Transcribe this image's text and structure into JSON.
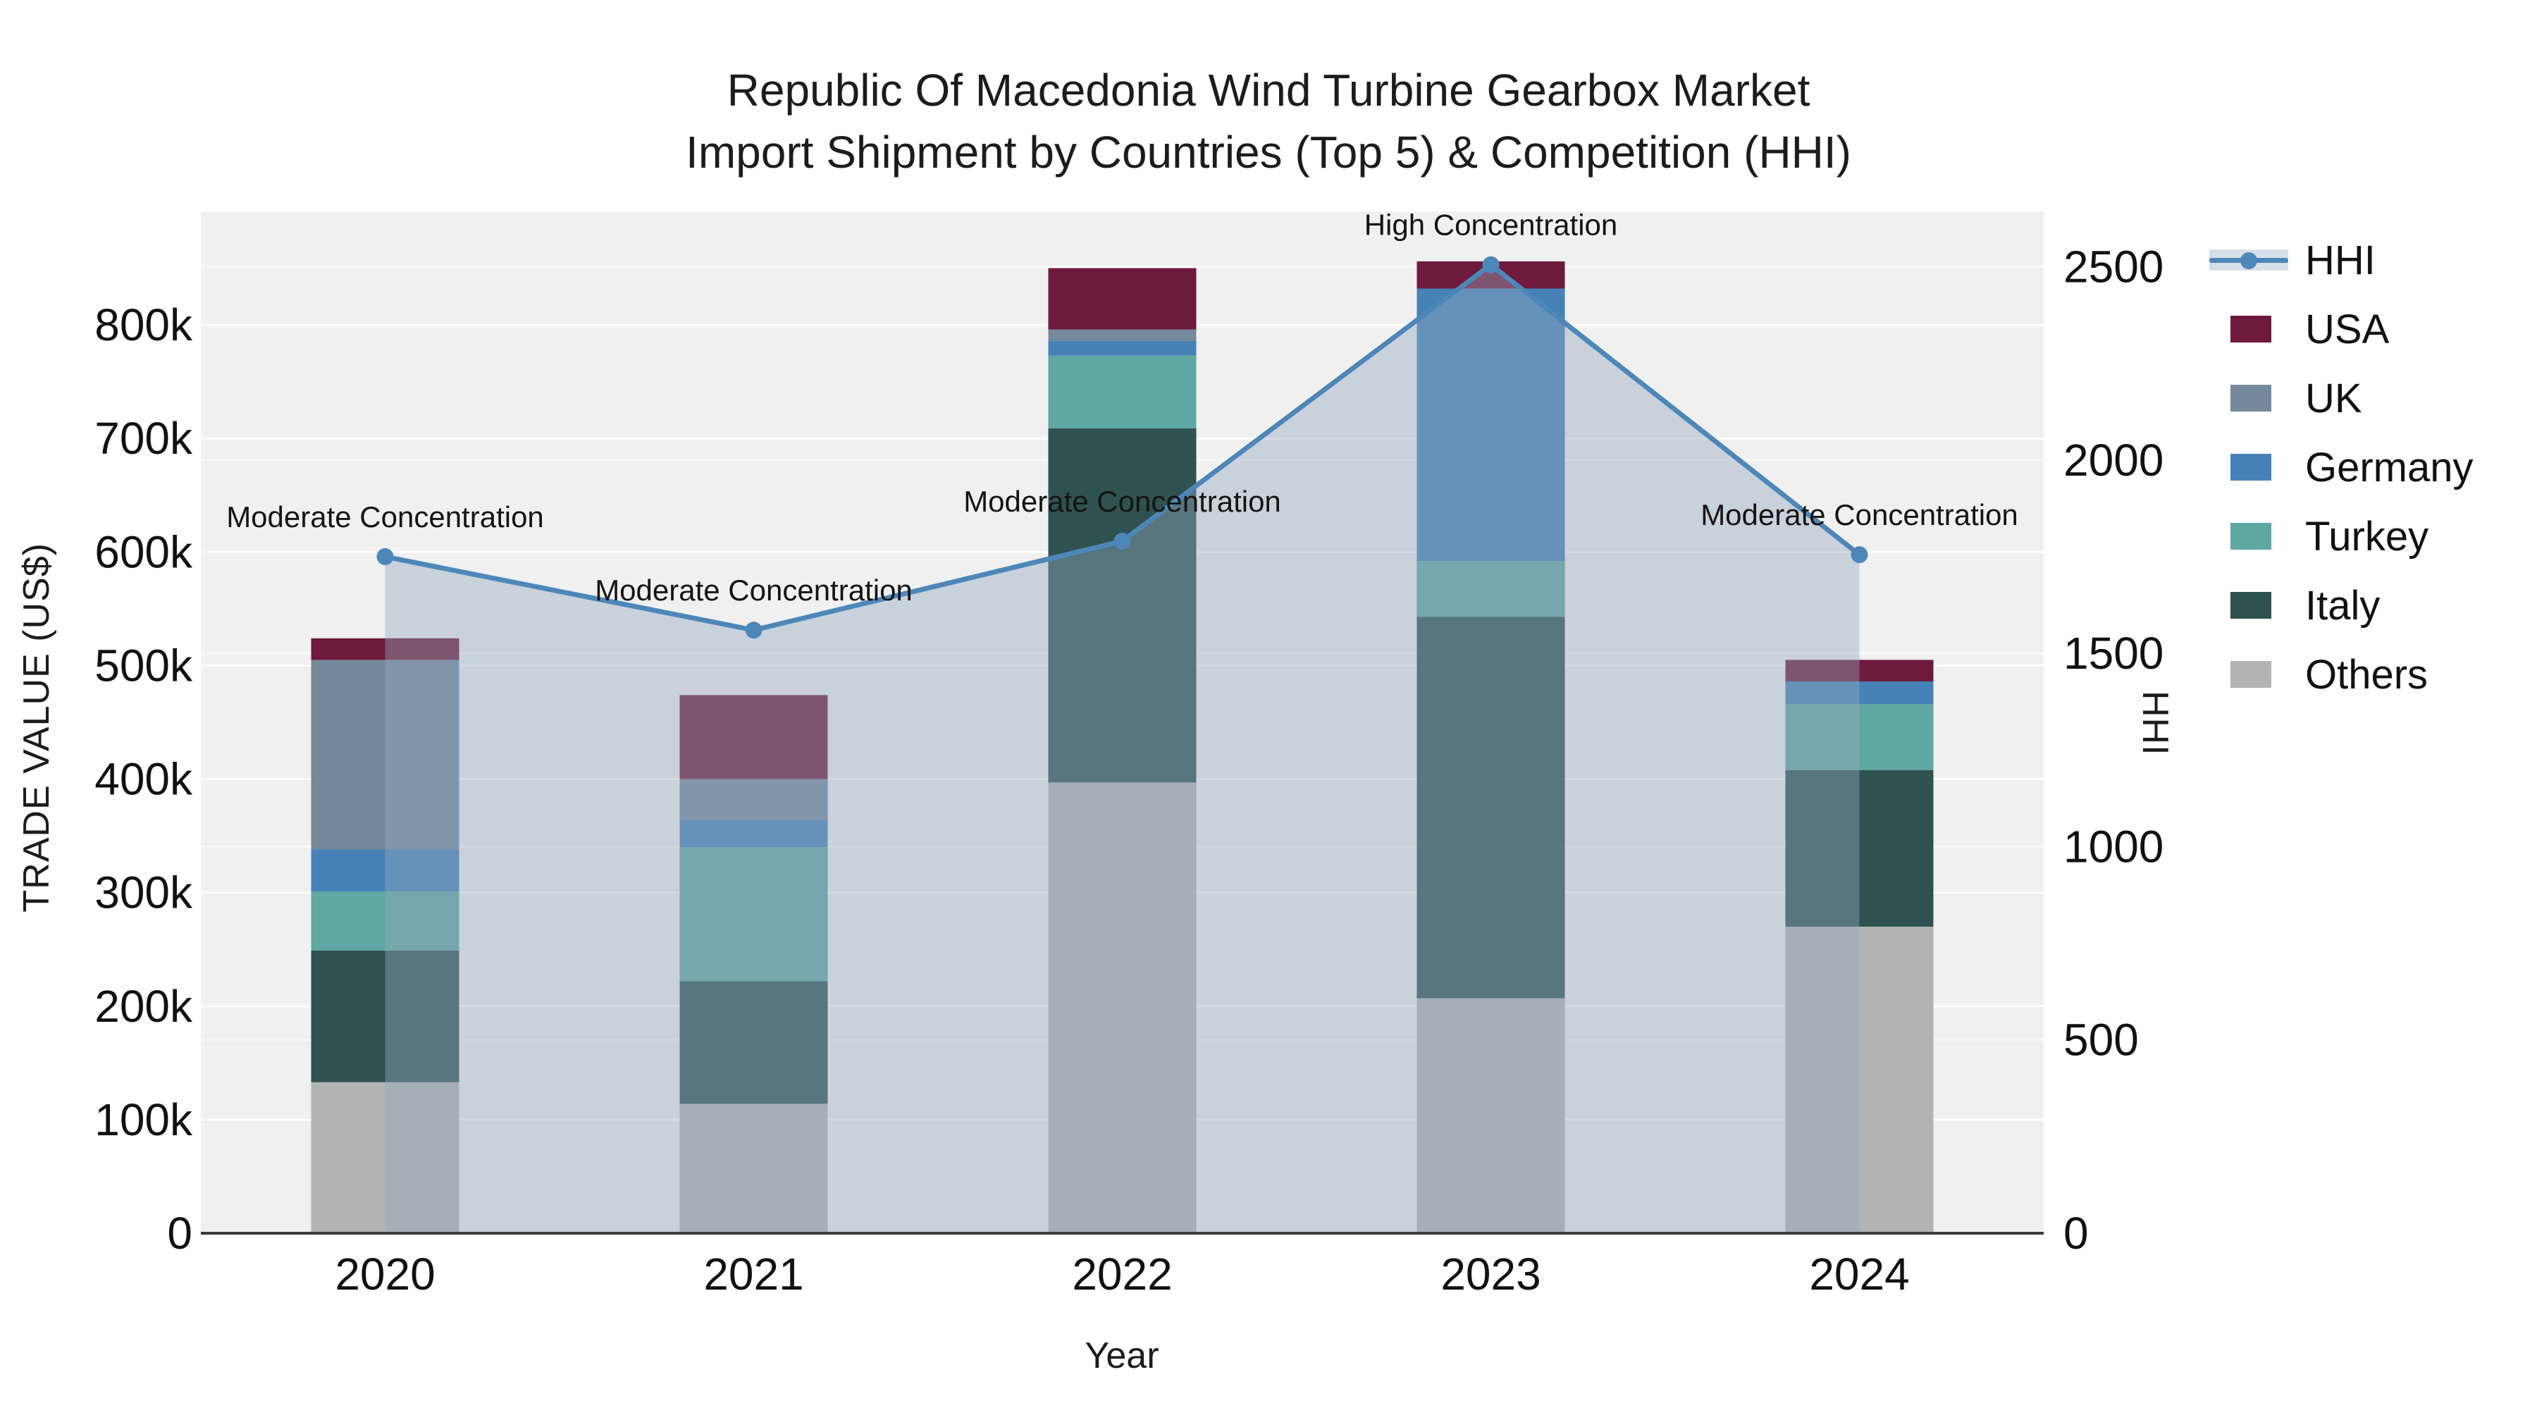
{
  "title": {
    "line1": "Republic Of Macedonia Wind Turbine Gearbox Market",
    "line2": "Import Shipment by Countries (Top 5) & Competition (HHI)"
  },
  "axes": {
    "y_left_title": "TRADE VALUE (US$)",
    "y_right_title": "HHI",
    "x_title": "Year",
    "y_left_ticks": [
      {
        "label": "0",
        "value": 0
      },
      {
        "label": "100k",
        "value": 100000
      },
      {
        "label": "200k",
        "value": 200000
      },
      {
        "label": "300k",
        "value": 300000
      },
      {
        "label": "400k",
        "value": 400000
      },
      {
        "label": "500k",
        "value": 500000
      },
      {
        "label": "600k",
        "value": 600000
      },
      {
        "label": "700k",
        "value": 700000
      },
      {
        "label": "800k",
        "value": 800000
      }
    ],
    "y_right_ticks": [
      {
        "label": "0",
        "value": 0
      },
      {
        "label": "500",
        "value": 500
      },
      {
        "label": "1000",
        "value": 1000
      },
      {
        "label": "1500",
        "value": 1500
      },
      {
        "label": "2000",
        "value": 2000
      },
      {
        "label": "2500",
        "value": 2500
      }
    ]
  },
  "legend": [
    {
      "name": "HHI",
      "type": "line",
      "color": "#4d87b9"
    },
    {
      "name": "USA",
      "type": "bar",
      "color": "#6e1a3c"
    },
    {
      "name": "UK",
      "type": "bar",
      "color": "#76889b"
    },
    {
      "name": "Germany",
      "type": "bar",
      "color": "#4682b7"
    },
    {
      "name": "Turkey",
      "type": "bar",
      "color": "#5fa7a3"
    },
    {
      "name": "Italy",
      "type": "bar",
      "color": "#2f5250"
    },
    {
      "name": "Others",
      "type": "bar",
      "color": "#b3b3b3"
    }
  ],
  "chart_data": {
    "type": "bar",
    "subtype": "stacked-bar-with-line",
    "categories": [
      "2020",
      "2021",
      "2022",
      "2023",
      "2024"
    ],
    "series": [
      {
        "name": "Others",
        "color": "#b3b3b3",
        "values": [
          133000,
          114000,
          397000,
          207000,
          270000
        ]
      },
      {
        "name": "Italy",
        "color": "#2f5250",
        "values": [
          116000,
          108000,
          312000,
          336000,
          138000
        ]
      },
      {
        "name": "Turkey",
        "color": "#5fa7a3",
        "values": [
          52000,
          118000,
          64000,
          49000,
          58000
        ]
      },
      {
        "name": "Germany",
        "color": "#4682b7",
        "values": [
          37000,
          24000,
          13000,
          240000,
          20000
        ]
      },
      {
        "name": "UK",
        "color": "#76889b",
        "values": [
          167000,
          36000,
          10000,
          0,
          0
        ]
      },
      {
        "name": "USA",
        "color": "#6e1a3c",
        "values": [
          19000,
          74000,
          54000,
          24000,
          19000
        ]
      }
    ],
    "line_series": {
      "name": "HHI",
      "color": "#4d87b9",
      "area_color": "#93a6bd",
      "area_opacity": 0.42,
      "values": [
        1750,
        1560,
        1790,
        2505,
        1755
      ]
    },
    "annotations": [
      {
        "category": "2020",
        "text": "Moderate Concentration"
      },
      {
        "category": "2021",
        "text": "Moderate Concentration"
      },
      {
        "category": "2022",
        "text": "Moderate Concentration"
      },
      {
        "category": "2023",
        "text": "High Concentration"
      },
      {
        "category": "2024",
        "text": "Moderate Concentration"
      }
    ],
    "title": "Republic Of Macedonia Wind Turbine Gearbox Market Import Shipment by Countries (Top 5) & Competition (HHI)",
    "xlabel": "Year",
    "ylabel_left": "TRADE VALUE (US$)",
    "ylabel_right": "HHI",
    "ylim_left": [
      0,
      900000
    ],
    "ylim_right": [
      0,
      2643
    ],
    "grid": true,
    "legend_position": "right"
  }
}
